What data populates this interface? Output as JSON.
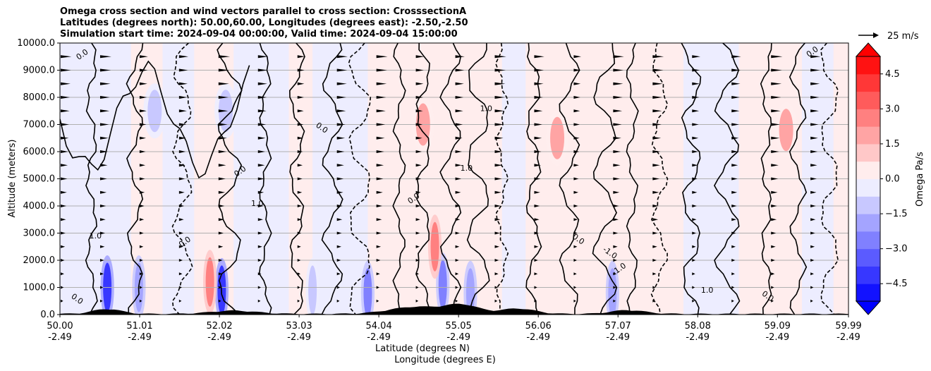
{
  "chart_data": {
    "type": "heatmap",
    "title_lines": [
      "Omega cross section and wind vectors parallel to cross section: CrosssectionA",
      "Latitudes (degrees north): 50.00,60.00, Longitudes (degrees east): -2.50,-2.50",
      "Simulation start time: 2024-09-04 00:00:00, Valid time: 2024-09-04 15:00:00"
    ],
    "ylabel": "Altitude (meters)",
    "xlabel_lines": [
      "Latitude (degrees N)",
      "Longitude (degrees E)"
    ],
    "ylim": [
      0,
      10000
    ],
    "xlim": [
      50.0,
      59.99
    ],
    "y_ticks": [
      "0.0",
      "1000.0",
      "2000.0",
      "3000.0",
      "4000.0",
      "5000.0",
      "6000.0",
      "7000.0",
      "8000.0",
      "9000.0",
      "10000.0"
    ],
    "x_ticks": [
      {
        "lat": "50.00",
        "lon": "-2.49"
      },
      {
        "lat": "51.01",
        "lon": "-2.49"
      },
      {
        "lat": "52.02",
        "lon": "-2.49"
      },
      {
        "lat": "53.03",
        "lon": "-2.49"
      },
      {
        "lat": "54.04",
        "lon": "-2.49"
      },
      {
        "lat": "55.05",
        "lon": "-2.49"
      },
      {
        "lat": "56.06",
        "lon": "-2.49"
      },
      {
        "lat": "57.07",
        "lon": "-2.49"
      },
      {
        "lat": "58.08",
        "lon": "-2.49"
      },
      {
        "lat": "59.09",
        "lon": "-2.49"
      },
      {
        "lat": "59.99",
        "lon": "-2.49"
      }
    ],
    "colorbar": {
      "label": "Omega Pa/s",
      "min": -5.25,
      "max": 5.25,
      "step": 0.75,
      "ticks": [
        {
          "value": 4.5,
          "label": "4.5"
        },
        {
          "value": 3.0,
          "label": "3.0"
        },
        {
          "value": 1.5,
          "label": "1.5"
        },
        {
          "value": 0.0,
          "label": "0.0"
        },
        {
          "value": -1.5,
          "label": "−1.5"
        },
        {
          "value": -3.0,
          "label": "−3.0"
        },
        {
          "value": -4.5,
          "label": "−4.5"
        }
      ]
    },
    "quiver_key": {
      "label": "25 m/s"
    },
    "contour_levels": [
      -1.0,
      0.0,
      1.0
    ],
    "contour_labels": [
      "0.0",
      "1.0",
      "-1.0"
    ],
    "vector_columns_lat": [
      50.0,
      50.5,
      51.0,
      51.5,
      52.0,
      52.5,
      53.0,
      53.5,
      54.0,
      54.5,
      55.0,
      55.5,
      56.0,
      56.5,
      57.0,
      57.5,
      58.0,
      58.5,
      59.0,
      59.5
    ],
    "vector_rows_alt": [
      500,
      1000,
      1500,
      2000,
      2500,
      3000,
      3500,
      4000,
      4500,
      5000,
      5500,
      6000,
      6500,
      7000,
      7500,
      8000,
      8500,
      9000,
      9500
    ],
    "omega_features": [
      {
        "lat": 50.6,
        "alt": 1000,
        "omega": -4.0
      },
      {
        "lat": 51.0,
        "alt": 1000,
        "omega": -2.0
      },
      {
        "lat": 52.05,
        "alt": 900,
        "omega": -4.0
      },
      {
        "lat": 51.9,
        "alt": 1200,
        "omega": 2.5
      },
      {
        "lat": 53.2,
        "alt": 900,
        "omega": -1.5
      },
      {
        "lat": 53.9,
        "alt": 800,
        "omega": -2.5
      },
      {
        "lat": 54.85,
        "alt": 1100,
        "omega": -3.0
      },
      {
        "lat": 54.75,
        "alt": 2500,
        "omega": 2.5
      },
      {
        "lat": 55.2,
        "alt": 800,
        "omega": -2.0
      },
      {
        "lat": 57.0,
        "alt": 800,
        "omega": -2.0
      },
      {
        "lat": 51.2,
        "alt": 7500,
        "omega": -1.5
      },
      {
        "lat": 52.1,
        "alt": 7500,
        "omega": -1.5
      },
      {
        "lat": 54.6,
        "alt": 7000,
        "omega": 1.5
      },
      {
        "lat": 56.3,
        "alt": 6500,
        "omega": 1.5
      },
      {
        "lat": 59.2,
        "alt": 6800,
        "omega": 1.5
      }
    ]
  }
}
